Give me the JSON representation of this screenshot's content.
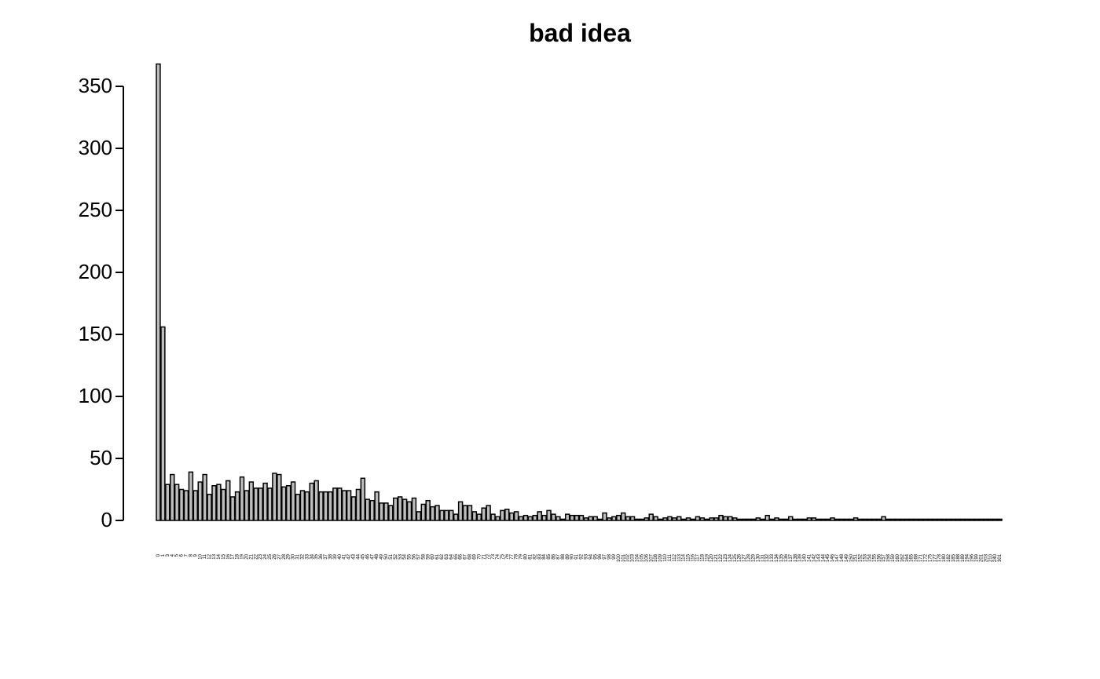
{
  "chart_data": {
    "type": "bar",
    "title": "bad idea",
    "categories": [
      "0",
      "1",
      "3",
      "4",
      "5",
      "6",
      "7",
      "8",
      "9",
      "10",
      "11",
      "12",
      "13",
      "14",
      "15",
      "16",
      "17",
      "18",
      "19",
      "20",
      "21",
      "22",
      "23",
      "24",
      "25",
      "26",
      "27",
      "28",
      "29",
      "30",
      "31",
      "32",
      "33",
      "34",
      "35",
      "36",
      "37",
      "38",
      "39",
      "40",
      "41",
      "42",
      "43",
      "44",
      "45",
      "46",
      "47",
      "48",
      "49",
      "50",
      "51",
      "52",
      "53",
      "54",
      "55",
      "56",
      "57",
      "58",
      "59",
      "60",
      "61",
      "62",
      "63",
      "64",
      "65",
      "66",
      "67",
      "68",
      "69",
      "70",
      "71",
      "72",
      "73",
      "74",
      "75",
      "76",
      "77",
      "78",
      "79",
      "80",
      "81",
      "82",
      "83",
      "84",
      "85",
      "86",
      "87",
      "88",
      "89",
      "90",
      "91",
      "92",
      "93",
      "94",
      "95",
      "96",
      "97",
      "98",
      "99",
      "100",
      "101",
      "102",
      "103",
      "104",
      "105",
      "106",
      "107",
      "108",
      "109",
      "110",
      "111",
      "112",
      "113",
      "114",
      "115",
      "116",
      "117",
      "118",
      "119",
      "120",
      "121",
      "122",
      "123",
      "124",
      "125",
      "126",
      "127",
      "128",
      "129",
      "130",
      "131",
      "132",
      "133",
      "134",
      "135",
      "136",
      "137",
      "138",
      "139",
      "140",
      "141",
      "142",
      "143",
      "144",
      "145",
      "146",
      "147",
      "148",
      "149",
      "150",
      "151",
      "152",
      "153",
      "154",
      "155",
      "156",
      "157",
      "158",
      "159",
      "160",
      "162",
      "164",
      "165",
      "168",
      "171",
      "172",
      "175",
      "177",
      "178",
      "180",
      "182",
      "185",
      "188",
      "189",
      "194",
      "196",
      "199",
      "201",
      "203",
      "210",
      "240",
      "301"
    ],
    "values": [
      368,
      156,
      29,
      37,
      29,
      25,
      24,
      39,
      24,
      31,
      37,
      21,
      28,
      29,
      25,
      32,
      19,
      23,
      35,
      24,
      31,
      26,
      26,
      30,
      26,
      38,
      37,
      27,
      28,
      31,
      21,
      24,
      23,
      30,
      32,
      23,
      23,
      23,
      26,
      26,
      24,
      24,
      19,
      25,
      34,
      17,
      16,
      23,
      14,
      14,
      12,
      18,
      19,
      17,
      15,
      18,
      7,
      13,
      16,
      11,
      12,
      8,
      8,
      8,
      5,
      15,
      12,
      12,
      7,
      5,
      10,
      12,
      5,
      3,
      8,
      9,
      6,
      7,
      3,
      4,
      3,
      4,
      7,
      4,
      8,
      5,
      3,
      1,
      5,
      4,
      4,
      4,
      2,
      3,
      3,
      1,
      6,
      2,
      3,
      4,
      6,
      3,
      3,
      1,
      1,
      2,
      5,
      3,
      1,
      2,
      3,
      2,
      3,
      1,
      2,
      1,
      3,
      2,
      1,
      2,
      2,
      4,
      3,
      3,
      2,
      1,
      1,
      1,
      1,
      2,
      1,
      4,
      1,
      2,
      1,
      1,
      3,
      1,
      1,
      1,
      2,
      2,
      1,
      1,
      1,
      2,
      1,
      1,
      1,
      1,
      2,
      1,
      1,
      1,
      1,
      1,
      3,
      1,
      1,
      1,
      1,
      1,
      1,
      1,
      1,
      1,
      1,
      1,
      1,
      1,
      1,
      1,
      1,
      1,
      1,
      1,
      1,
      1,
      1,
      1,
      1,
      1
    ],
    "color": "#bebebe",
    "ylim": [
      0,
      382
    ],
    "yticks": [
      0,
      50,
      100,
      150,
      200,
      250,
      300,
      350
    ]
  }
}
